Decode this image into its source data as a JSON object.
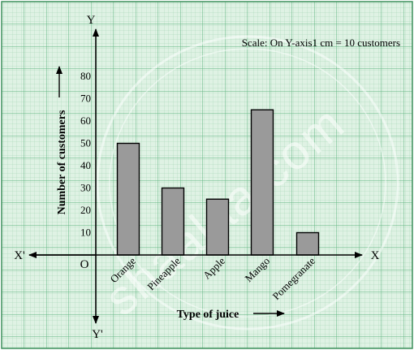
{
  "chart_data": {
    "type": "bar",
    "categories": [
      "Orange",
      "Pineapple",
      "Apple",
      "Mango",
      "Pomegranate"
    ],
    "values": [
      50,
      30,
      25,
      65,
      10
    ],
    "ylim": [
      0,
      80
    ],
    "yticks": [
      "10",
      "20",
      "30",
      "40",
      "50",
      "60",
      "70",
      "80"
    ],
    "ylabel": "Number of customers",
    "xlabel": "Type of juice",
    "scale_note": "Scale: On Y-axis1 cm = 10 customers",
    "axis_letters": {
      "x": "X",
      "x_neg": "X'",
      "y": "Y",
      "y_neg": "Y'",
      "origin": "O"
    },
    "grid": true
  },
  "watermark": "shaalaa.com",
  "colors": {
    "grid_paper": "#cfe9d6",
    "grid_minor": "#9fd3b0",
    "grid_major": "#5fb47f",
    "bar_fill": "#9a9a9a",
    "axis": "#000000"
  }
}
